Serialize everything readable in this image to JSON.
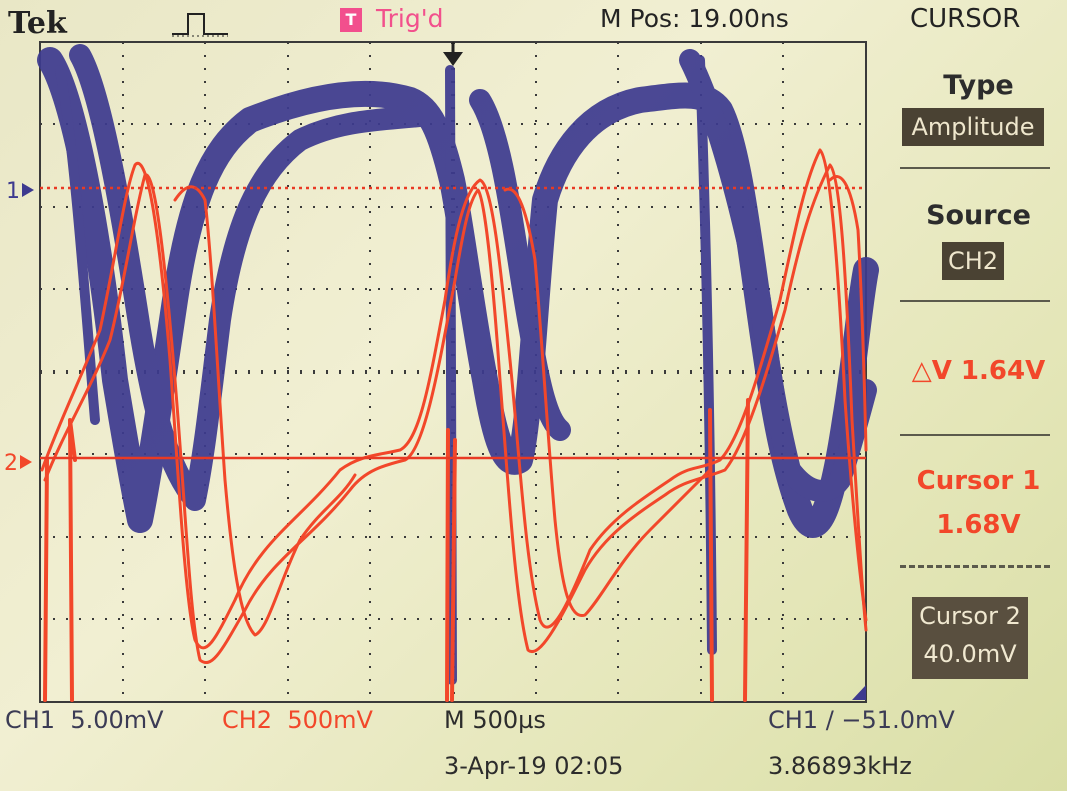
{
  "header": {
    "brand": "Tek",
    "trigger_icon": "T",
    "trigger_status": "Trig'd",
    "m_pos": "M Pos: 19.00ns",
    "menu_title": "CURSOR"
  },
  "menu": {
    "type_label": "Type",
    "type_value": "Amplitude",
    "source_label": "Source",
    "source_value": "CH2",
    "delta_v": "△V 1.64V",
    "cursor1_label": "Cursor 1",
    "cursor1_value": "1.68V",
    "cursor2_label": "Cursor 2",
    "cursor2_value": "40.0mV"
  },
  "markers": {
    "ch1": "1",
    "ch2": "2"
  },
  "status": {
    "ch1_scale": "CH1  5.00mV",
    "ch2_scale": "CH2  500mV",
    "time_scale": "M 500µs",
    "trigger_level": "CH1 ∕ −51.0mV",
    "date": "3-Apr-19 02:05",
    "frequency": "3.86893kHz"
  },
  "colors": {
    "ch1": "#3d3a8f",
    "ch2": "#f2472a",
    "grid": "#3a3a3a",
    "cursor": "#e93a24"
  }
}
